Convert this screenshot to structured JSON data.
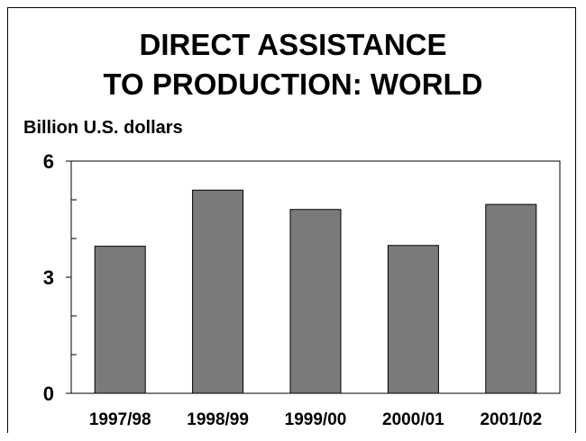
{
  "chart_data": {
    "type": "bar",
    "title": [
      "DIRECT ASSISTANCE",
      "TO PRODUCTION: WORLD"
    ],
    "ylabel": "Billion U.S. dollars",
    "categories": [
      "1997/98",
      "1998/99",
      "1999/00",
      "2000/01",
      "2001/02"
    ],
    "values": [
      3.8,
      5.25,
      4.75,
      3.82,
      4.88
    ],
    "ylim": [
      0,
      6
    ],
    "yticks": [
      0,
      3,
      6
    ],
    "yticks_minor": [
      1,
      2,
      4,
      5
    ],
    "grid": false,
    "colors": {
      "bar": "#7a7a7a",
      "bar_edge": "#000000",
      "axis": "#000000"
    }
  }
}
